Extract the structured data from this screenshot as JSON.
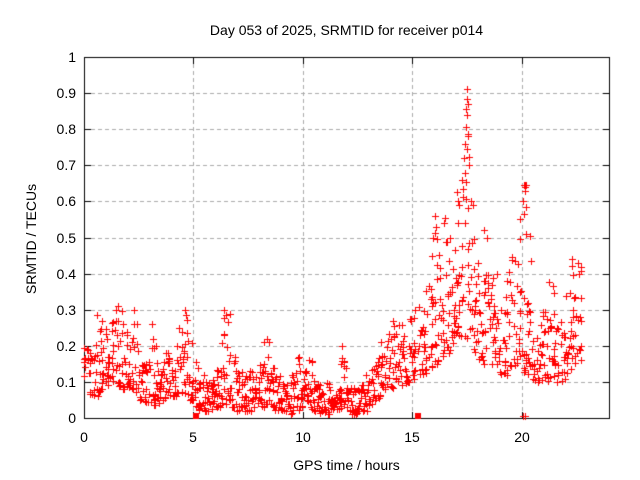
{
  "chart_data": {
    "type": "scatter",
    "title": "Day 053 of 2025, SRMTID for receiver p014",
    "xlabel": "GPS time / hours",
    "ylabel": "SRMTID / TECUs",
    "axes": {
      "xlim": [
        0,
        24
      ],
      "ylim": [
        0,
        1
      ],
      "x_tick_values": [
        0,
        5,
        10,
        15,
        20
      ],
      "y_tick_values": [
        0,
        0.1,
        0.2,
        0.3,
        0.4,
        0.5,
        0.6,
        0.7,
        0.8,
        0.9,
        1
      ],
      "grid": true,
      "legend": "none"
    },
    "x_tick_labels": [
      "0",
      "5",
      "10",
      "15",
      "20"
    ],
    "y_tick_labels": [
      "0",
      "0.1",
      "0.2",
      "0.3",
      "0.4",
      "0.5",
      "0.6",
      "0.7",
      "0.8",
      "0.9",
      "1"
    ],
    "marker": "plus",
    "colors": {
      "marker": "#ff0000",
      "grid": "#ababab",
      "border": "#000000",
      "text": "#000000",
      "background": "#ffffff"
    },
    "seed": 53,
    "envelope": {
      "comment": "Scatter density read off the plot: bins of dt hours starting at t0; each bin is [y_min, y_max, n_points]",
      "t0": 0,
      "dt": 0.25,
      "bins": [
        [
          0.07,
          0.2,
          13
        ],
        [
          0.06,
          0.19,
          13
        ],
        [
          0.06,
          0.29,
          13
        ],
        [
          0.08,
          0.27,
          13
        ],
        [
          0.09,
          0.26,
          13
        ],
        [
          0.1,
          0.31,
          14
        ],
        [
          0.09,
          0.3,
          14
        ],
        [
          0.08,
          0.28,
          14
        ],
        [
          0.08,
          0.26,
          13
        ],
        [
          0.07,
          0.3,
          13
        ],
        [
          0.05,
          0.2,
          13
        ],
        [
          0.04,
          0.16,
          13
        ],
        [
          0.03,
          0.26,
          13
        ],
        [
          0.04,
          0.22,
          13
        ],
        [
          0.05,
          0.18,
          13
        ],
        [
          0.05,
          0.2,
          13
        ],
        [
          0.06,
          0.22,
          13
        ],
        [
          0.07,
          0.26,
          13
        ],
        [
          0.07,
          0.3,
          14
        ],
        [
          0.05,
          0.22,
          13
        ],
        [
          0.03,
          0.17,
          13
        ],
        [
          0.02,
          0.13,
          14
        ],
        [
          0.02,
          0.11,
          14
        ],
        [
          0.02,
          0.12,
          14
        ],
        [
          0.03,
          0.14,
          14
        ],
        [
          0.04,
          0.28,
          14
        ],
        [
          0.04,
          0.3,
          14
        ],
        [
          0.03,
          0.2,
          14
        ],
        [
          0.02,
          0.13,
          14
        ],
        [
          0.02,
          0.12,
          14
        ],
        [
          0.02,
          0.13,
          14
        ],
        [
          0.03,
          0.15,
          14
        ],
        [
          0.03,
          0.16,
          14
        ],
        [
          0.04,
          0.22,
          14
        ],
        [
          0.03,
          0.15,
          14
        ],
        [
          0.02,
          0.12,
          14
        ],
        [
          0.02,
          0.11,
          14
        ],
        [
          0.01,
          0.1,
          14
        ],
        [
          0.02,
          0.13,
          14
        ],
        [
          0.02,
          0.17,
          14
        ],
        [
          0.02,
          0.15,
          14
        ],
        [
          0.02,
          0.16,
          14
        ],
        [
          0.02,
          0.11,
          14
        ],
        [
          0.01,
          0.1,
          14
        ],
        [
          0.01,
          0.1,
          14
        ],
        [
          0.02,
          0.12,
          14
        ],
        [
          0.02,
          0.15,
          14
        ],
        [
          0.03,
          0.2,
          14
        ],
        [
          0.02,
          0.1,
          14
        ],
        [
          0.01,
          0.09,
          14
        ],
        [
          0.02,
          0.1,
          14
        ],
        [
          0.02,
          0.12,
          14
        ],
        [
          0.03,
          0.14,
          14
        ],
        [
          0.05,
          0.18,
          13
        ],
        [
          0.06,
          0.22,
          13
        ],
        [
          0.08,
          0.25,
          13
        ],
        [
          0.08,
          0.29,
          13
        ],
        [
          0.1,
          0.27,
          13
        ],
        [
          0.09,
          0.26,
          13
        ],
        [
          0.1,
          0.28,
          13
        ],
        [
          0.1,
          0.3,
          13
        ],
        [
          0.12,
          0.33,
          13
        ],
        [
          0.12,
          0.36,
          13
        ],
        [
          0.14,
          0.42,
          13
        ],
        [
          0.15,
          0.56,
          14
        ],
        [
          0.17,
          0.48,
          14
        ],
        [
          0.18,
          0.56,
          15
        ],
        [
          0.2,
          0.52,
          15
        ],
        [
          0.22,
          0.62,
          15
        ],
        [
          0.22,
          0.8,
          15
        ],
        [
          0.2,
          0.91,
          16
        ],
        [
          0.18,
          0.62,
          15
        ],
        [
          0.16,
          0.5,
          14
        ],
        [
          0.15,
          0.52,
          14
        ],
        [
          0.14,
          0.45,
          14
        ],
        [
          0.13,
          0.4,
          13
        ],
        [
          0.12,
          0.38,
          13
        ],
        [
          0.12,
          0.42,
          13
        ],
        [
          0.14,
          0.45,
          13
        ],
        [
          0.15,
          0.55,
          14
        ],
        [
          0.12,
          0.65,
          14
        ],
        [
          0.12,
          0.55,
          14
        ],
        [
          0.1,
          0.32,
          13
        ],
        [
          0.1,
          0.3,
          13
        ],
        [
          0.1,
          0.34,
          13
        ],
        [
          0.11,
          0.38,
          13
        ],
        [
          0.1,
          0.3,
          13
        ],
        [
          0.1,
          0.28,
          13
        ],
        [
          0.12,
          0.35,
          13
        ],
        [
          0.14,
          0.44,
          13
        ],
        [
          0.16,
          0.43,
          12
        ]
      ]
    },
    "notable_points": [
      [
        17.52,
        0.91
      ],
      [
        17.5,
        0.885
      ],
      [
        17.55,
        0.87
      ],
      [
        17.47,
        0.855
      ],
      [
        17.53,
        0.84
      ],
      [
        17.44,
        0.805
      ],
      [
        17.57,
        0.78
      ],
      [
        17.4,
        0.76
      ],
      [
        17.5,
        0.745
      ],
      [
        17.35,
        0.72
      ],
      [
        17.6,
        0.7
      ],
      [
        17.42,
        0.68
      ],
      [
        17.3,
        0.66
      ],
      [
        17.05,
        0.625
      ],
      [
        17.1,
        0.6
      ],
      [
        16.05,
        0.56
      ],
      [
        16.1,
        0.53
      ],
      [
        16.45,
        0.54
      ],
      [
        16.5,
        0.555
      ],
      [
        15.95,
        0.5
      ],
      [
        15.9,
        0.45
      ],
      [
        18.3,
        0.52
      ],
      [
        18.4,
        0.5
      ],
      [
        19.95,
        0.55
      ],
      [
        20.05,
        0.6
      ],
      [
        20.1,
        0.645
      ],
      [
        20.15,
        0.63
      ],
      [
        20.2,
        0.585
      ],
      [
        20.12,
        0.565
      ],
      [
        22.3,
        0.44
      ],
      [
        22.33,
        0.42
      ],
      [
        22.36,
        0.395
      ],
      [
        22.6,
        0.43
      ],
      [
        22.65,
        0.4
      ],
      [
        1.55,
        0.31
      ],
      [
        1.45,
        0.3
      ],
      [
        2.3,
        0.3
      ],
      [
        3.1,
        0.26
      ],
      [
        4.6,
        0.3
      ],
      [
        4.65,
        0.285
      ],
      [
        6.42,
        0.3
      ],
      [
        6.5,
        0.285
      ],
      [
        0.8,
        0.27
      ],
      [
        0.6,
        0.285
      ],
      [
        8.35,
        0.22
      ],
      [
        11.8,
        0.2
      ]
    ],
    "zero_square_markers_t": [
      5.1,
      15.25
    ],
    "zero_cross_markers_t": [
      20.05,
      20.18
    ],
    "data_t_range": [
      0,
      22.8
    ]
  }
}
